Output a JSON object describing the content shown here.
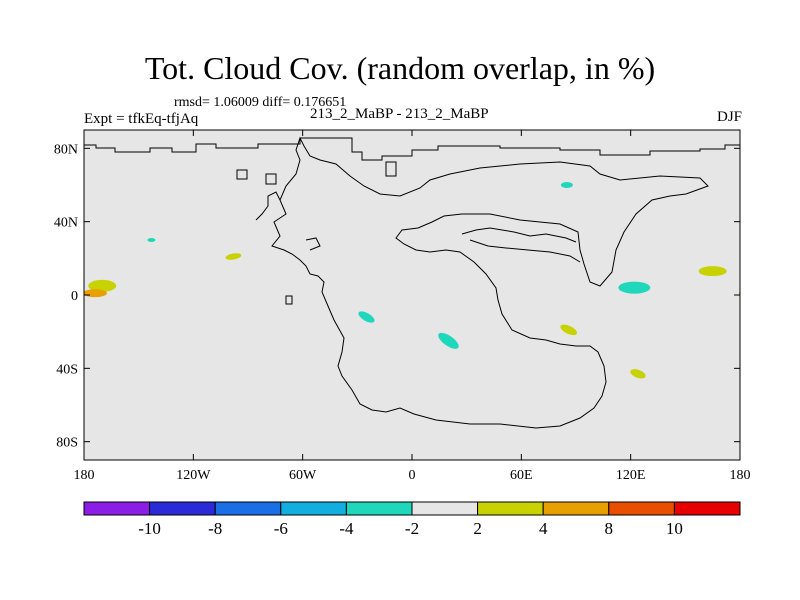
{
  "title": "Tot. Cloud Cov. (random overlap, in %)",
  "stats": "rmsd= 1.06009 diff= 0.176651",
  "experiment": "Expt = tfkEq-tfjAq",
  "center_label": "213_2_MaBP - 213_2_MaBP",
  "season": "DJF",
  "colors": {
    "background": "#e6e6e6",
    "coast": "#000000"
  },
  "chart_data": {
    "type": "heatmap",
    "x_ticks": [
      "180",
      "120W",
      "60W",
      "0",
      "60E",
      "120E",
      "180"
    ],
    "x_tick_values": [
      -180,
      -120,
      -60,
      0,
      60,
      120,
      180
    ],
    "y_ticks": [
      "80N",
      "40N",
      "0",
      "40S",
      "80S"
    ],
    "y_tick_values": [
      80,
      40,
      0,
      -40,
      -80
    ],
    "xlim": [
      -180,
      180
    ],
    "ylim": [
      -90,
      90
    ],
    "colorbar": {
      "labels": [
        "-10",
        "-8",
        "-6",
        "-4",
        "-2",
        "2",
        "4",
        "8",
        "10"
      ],
      "boundaries": [
        -10,
        -8,
        -6,
        -4,
        -2,
        2,
        4,
        8,
        10
      ],
      "colors": [
        "#8a1ee6",
        "#2a2ad8",
        "#1a6ee6",
        "#12aee0",
        "#1fd8bc",
        "#e6e6e6",
        "#c8d200",
        "#e8a000",
        "#e85000",
        "#e60000"
      ]
    },
    "anomalies": [
      {
        "lon": -170,
        "lat": 5,
        "value": 3
      },
      {
        "lon": -174,
        "lat": 1,
        "value": 5
      },
      {
        "lon": -98,
        "lat": 21,
        "value": 3
      },
      {
        "lon": -25,
        "lat": -12,
        "value": -3
      },
      {
        "lon": 20,
        "lat": -25,
        "value": -3
      },
      {
        "lon": 86,
        "lat": -19,
        "value": 3
      },
      {
        "lon": 122,
        "lat": 4,
        "value": -3
      },
      {
        "lon": 165,
        "lat": 13,
        "value": 3
      },
      {
        "lon": 124,
        "lat": -43,
        "value": 3
      },
      {
        "lon": 85,
        "lat": 60,
        "value": -3
      },
      {
        "lon": -143,
        "lat": 30,
        "value": -3
      }
    ]
  }
}
